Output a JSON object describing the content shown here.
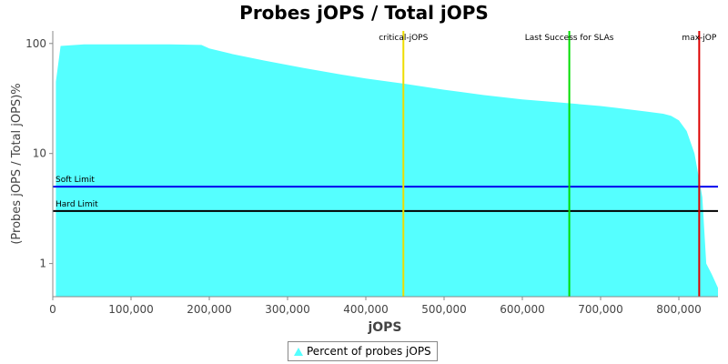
{
  "chart_data": {
    "type": "area",
    "title": "Probes jOPS / Total jOPS",
    "xlabel": "jOPS",
    "ylabel": "(Probes jOPS / Total jOPS)%",
    "y_scale": "log",
    "xlim": [
      0,
      850000
    ],
    "ylim": [
      0.5,
      130
    ],
    "x_ticks": [
      0,
      100000,
      200000,
      300000,
      400000,
      500000,
      600000,
      700000,
      800000
    ],
    "x_tick_labels": [
      "0",
      "100,000",
      "200,000",
      "300,000",
      "400,000",
      "500,000",
      "600,000",
      "700,000",
      "800,000"
    ],
    "y_ticks": [
      1,
      10,
      100
    ],
    "y_tick_labels": [
      "1",
      "10",
      "100"
    ],
    "grid": false,
    "legend": "bottom",
    "series": [
      {
        "name": "Percent of probes jOPS",
        "color": "#55ffff",
        "x": [
          4000,
          10000,
          40000,
          100000,
          150000,
          190000,
          200000,
          230000,
          270000,
          320000,
          370000,
          400000,
          450000,
          500000,
          550000,
          600000,
          650000,
          700000,
          720000,
          760000,
          780000,
          790000,
          800000,
          810000,
          820000,
          830000,
          835000,
          842000,
          850000
        ],
        "values": [
          45,
          95,
          98,
          98,
          98,
          97,
          90,
          80,
          70,
          60,
          52,
          48,
          43,
          38,
          34,
          31,
          29,
          27,
          26,
          24,
          23,
          22,
          20,
          16,
          10,
          4,
          1,
          0.8,
          0.6
        ]
      }
    ],
    "limit_lines": [
      {
        "label": "Soft Limit",
        "y": 5,
        "color": "#0000ee"
      },
      {
        "label": "Hard Limit",
        "y": 3,
        "color": "#000000"
      }
    ],
    "marker_lines": [
      {
        "label": "critical-jOPS",
        "x": 448000,
        "color": "#eedd00"
      },
      {
        "label": "Last Success for SLAs",
        "x": 660000,
        "color": "#00dd00"
      },
      {
        "label": "max-jOP",
        "x": 826000,
        "color": "#dd0000"
      }
    ]
  }
}
